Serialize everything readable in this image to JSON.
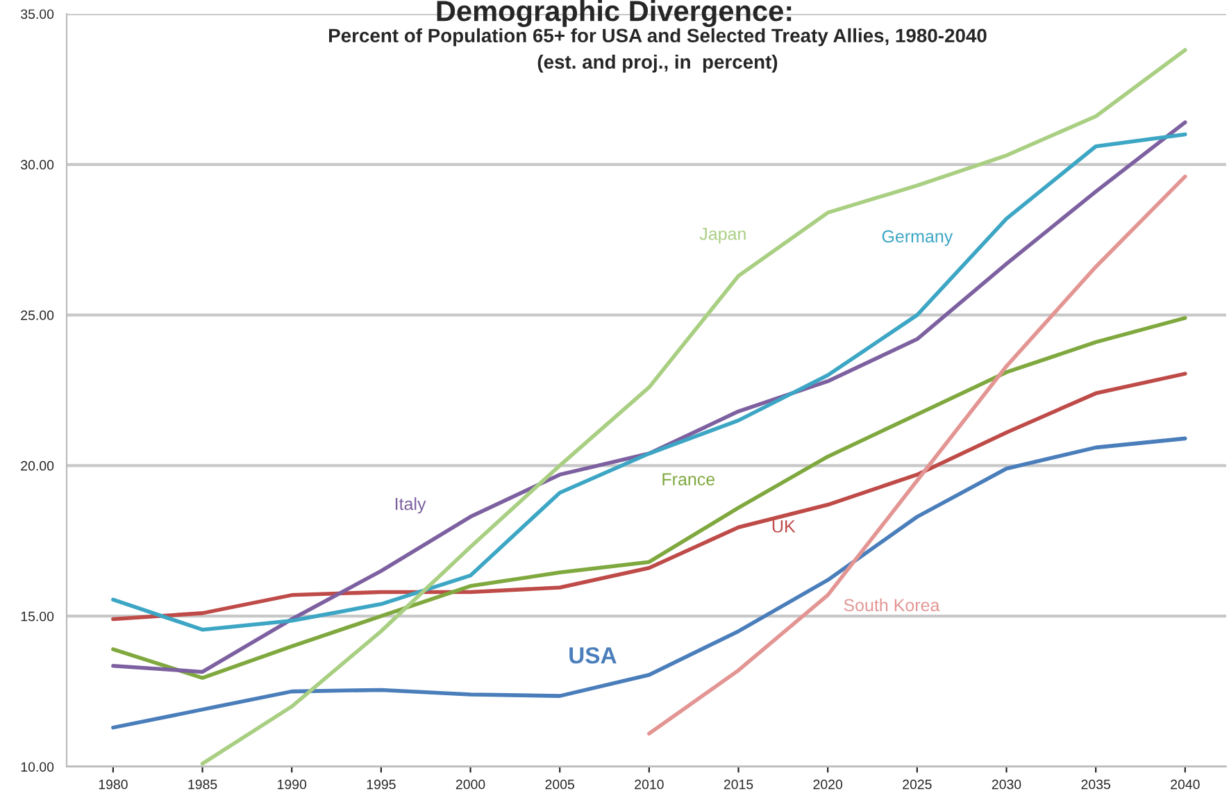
{
  "chart_data": {
    "type": "line",
    "title": "Demographic Divergence:",
    "subtitle": "Percent of Population 65+ for USA and Selected Treaty Allies, 1980-2040\n(est. and proj., in  percent)",
    "x": [
      1980,
      1985,
      1990,
      1995,
      2000,
      2005,
      2010,
      2015,
      2020,
      2025,
      2030,
      2035,
      2040
    ],
    "series": [
      {
        "name": "USA",
        "color": "#4a7ebb",
        "values": [
          11.3,
          11.9,
          12.5,
          12.55,
          12.4,
          12.35,
          13.05,
          14.5,
          16.2,
          18.3,
          19.9,
          20.6,
          20.9
        ]
      },
      {
        "name": "UK",
        "color": "#be4b48",
        "values": [
          14.9,
          15.1,
          15.7,
          15.8,
          15.8,
          15.95,
          16.6,
          17.95,
          18.7,
          19.7,
          21.1,
          22.4,
          23.05
        ]
      },
      {
        "name": "France",
        "color": "#7fa83e",
        "values": [
          13.9,
          12.95,
          14.0,
          15.0,
          16.0,
          16.45,
          16.8,
          18.6,
          20.3,
          21.7,
          23.1,
          24.1,
          24.9
        ]
      },
      {
        "name": "Italy",
        "color": "#7d60a0",
        "values": [
          13.35,
          13.15,
          14.9,
          16.5,
          18.3,
          19.7,
          20.4,
          21.8,
          22.8,
          24.2,
          26.7,
          29.1,
          31.4
        ]
      },
      {
        "name": "Germany",
        "color": "#3ca6c4",
        "values": [
          15.55,
          14.55,
          14.85,
          15.4,
          16.35,
          19.1,
          20.4,
          21.5,
          23.0,
          25.0,
          28.2,
          30.6,
          31.0
        ]
      },
      {
        "name": "Japan",
        "color": "#a9cf82",
        "values": [
          null,
          10.1,
          12.0,
          14.5,
          17.3,
          20.0,
          22.6,
          26.3,
          28.4,
          29.3,
          30.3,
          31.6,
          33.8
        ]
      },
      {
        "name": "South Korea",
        "color": "#e39593",
        "values": [
          null,
          null,
          null,
          null,
          null,
          null,
          11.1,
          13.2,
          15.7,
          19.5,
          23.3,
          26.6,
          29.6
        ]
      }
    ],
    "xlim": [
      1977.4,
      2042.3
    ],
    "xticks": [
      1980,
      1985,
      1990,
      1995,
      2000,
      2005,
      2010,
      2015,
      2020,
      2025,
      2030,
      2035,
      2040
    ],
    "ylim": [
      10,
      35
    ],
    "yticks": [
      {
        "value": 10,
        "label": "10.00"
      },
      {
        "value": 15,
        "label": "15.00"
      },
      {
        "value": 20,
        "label": "20.00"
      },
      {
        "value": 25,
        "label": "25.00"
      },
      {
        "value": 30,
        "label": "30.00"
      },
      {
        "value": 35,
        "label": "35.00"
      }
    ],
    "grid": "y",
    "legend": false,
    "marker": "none",
    "line_style": "solid"
  }
}
